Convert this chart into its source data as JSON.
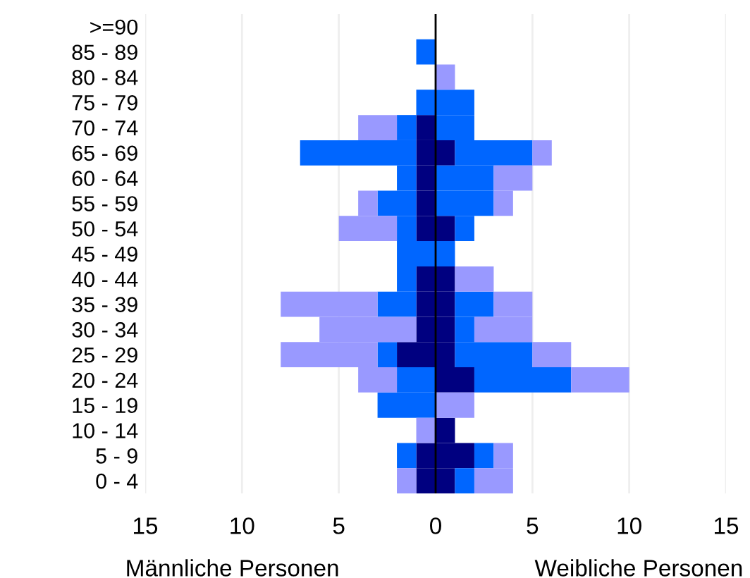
{
  "chart_data": {
    "type": "bar",
    "orientation": "horizontal",
    "stacked": true,
    "categories": [
      ">=90",
      "85 - 89",
      "80 - 84",
      "75 - 79",
      "70 - 74",
      "65 - 69",
      "60 - 64",
      "55 - 59",
      "50 - 54",
      "45 - 49",
      "40 - 44",
      "35 - 39",
      "30 - 34",
      "25 - 29",
      "20 - 24",
      "15 - 19",
      "10 - 14",
      "5 - 9",
      "0 - 4"
    ],
    "series": [
      {
        "color": "#000080",
        "values": [
          0,
          0,
          0,
          0,
          -1,
          -1,
          -1,
          -1,
          -1,
          0,
          -1,
          -1,
          -1,
          -2,
          0,
          0,
          0,
          -1,
          -1
        ]
      },
      {
        "color": "#0066ff",
        "values": [
          0,
          -1,
          0,
          -1,
          -1,
          -6,
          -1,
          -2,
          -1,
          -2,
          -1,
          -2,
          0,
          -1,
          -2,
          -3,
          0,
          -1,
          0
        ]
      },
      {
        "color": "#9999ff",
        "values": [
          0,
          0,
          0,
          0,
          -2,
          0,
          0,
          -1,
          -3,
          0,
          0,
          -5,
          -5,
          -5,
          -2,
          0,
          -1,
          0,
          -1
        ]
      },
      {
        "color": "#000080",
        "values": [
          0,
          0,
          0,
          0,
          0,
          1,
          0,
          0,
          1,
          0,
          1,
          1,
          1,
          1,
          2,
          0,
          1,
          2,
          1
        ]
      },
      {
        "color": "#0066ff",
        "values": [
          0,
          0,
          0,
          2,
          2,
          4,
          3,
          3,
          1,
          1,
          0,
          2,
          1,
          4,
          5,
          0,
          0,
          1,
          1
        ]
      },
      {
        "color": "#9999ff",
        "values": [
          0,
          0,
          1,
          0,
          0,
          1,
          2,
          1,
          0,
          0,
          2,
          2,
          3,
          2,
          3,
          2,
          0,
          1,
          2
        ]
      }
    ],
    "xlim": [
      -15,
      15
    ],
    "xticks": [
      {
        "value": -15,
        "label": "15"
      },
      {
        "value": -10,
        "label": "10"
      },
      {
        "value": -5,
        "label": "5"
      },
      0,
      5,
      10,
      15
    ],
    "grid": "x",
    "ref_lines": [
      {
        "axis": "x",
        "value": 0,
        "color": "#000000"
      }
    ],
    "annotations": [
      "Männliche Personen",
      "Weibliche Personen"
    ]
  }
}
